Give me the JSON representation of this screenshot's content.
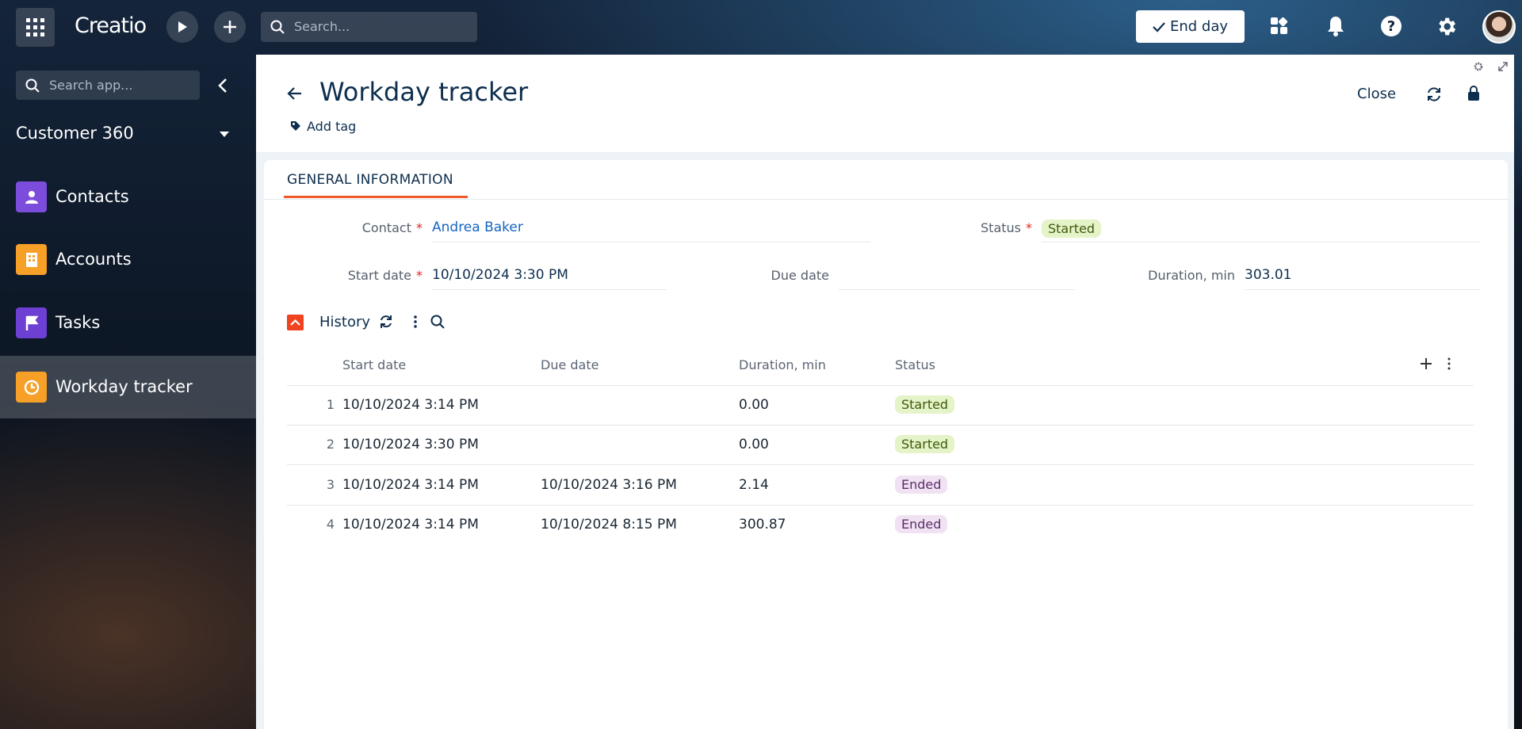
{
  "header": {
    "logo": "Creatio",
    "search_placeholder": "Search...",
    "end_day": "End day"
  },
  "sidebar": {
    "search_placeholder": "Search app...",
    "app": "Customer 360",
    "items": [
      "Contacts",
      "Accounts",
      "Tasks",
      "Workday tracker"
    ]
  },
  "page": {
    "title": "Workday tracker",
    "add_tag": "Add tag",
    "close": "Close",
    "tab": "GENERAL INFORMATION",
    "required_mark": "*",
    "fields": {
      "contact": {
        "label": "Contact",
        "value": "Andrea Baker"
      },
      "status": {
        "label": "Status",
        "value": "Started"
      },
      "start_date": {
        "label": "Start date",
        "value": "10/10/2024 3:30 PM"
      },
      "due_date": {
        "label": "Due date",
        "value": ""
      },
      "duration": {
        "label": "Duration, min",
        "value": "303.01"
      }
    }
  },
  "history": {
    "title": "History",
    "columns": [
      "Start date",
      "Due date",
      "Duration, min",
      "Status"
    ],
    "rows": [
      [
        "1",
        "10/10/2024 3:14 PM",
        "",
        "0.00",
        "Started"
      ],
      [
        "2",
        "10/10/2024 3:30 PM",
        "",
        "0.00",
        "Started"
      ],
      [
        "3",
        "10/10/2024 3:14 PM",
        "10/10/2024 3:16 PM",
        "2.14",
        "Ended"
      ],
      [
        "4",
        "10/10/2024 3:14 PM",
        "10/10/2024 8:15 PM",
        "300.87",
        "Ended"
      ]
    ]
  }
}
